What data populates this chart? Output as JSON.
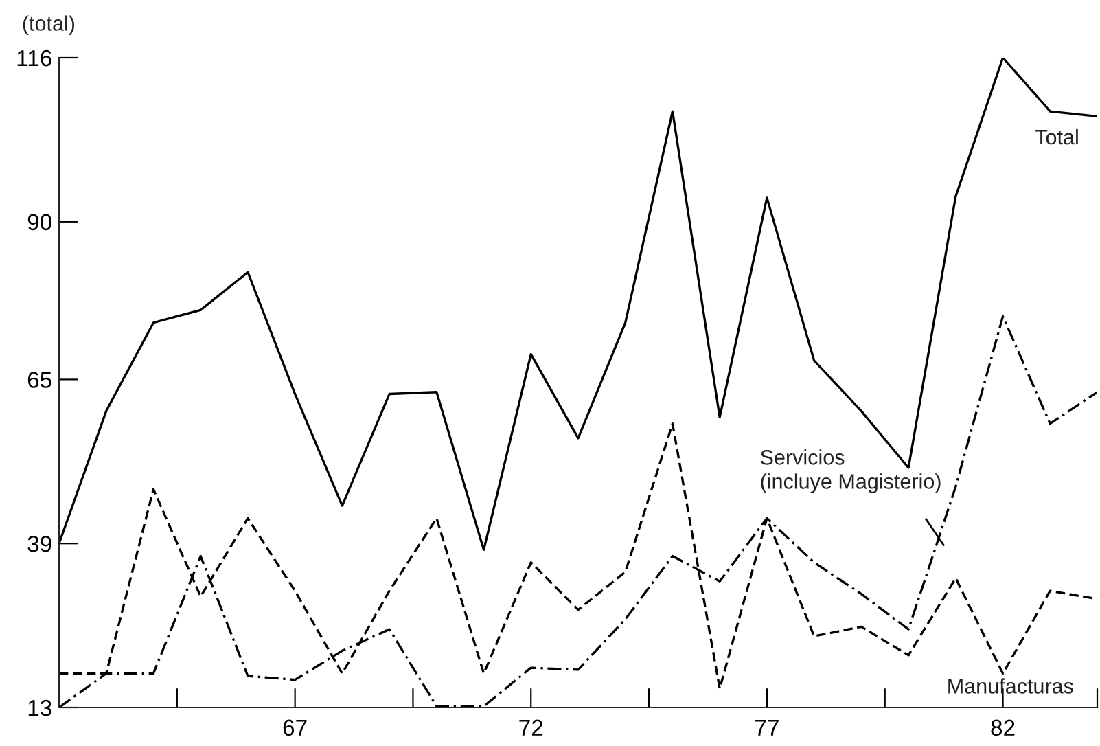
{
  "chart_data": {
    "type": "line",
    "ylabel": "(total)",
    "x": [
      62,
      63,
      64,
      65,
      66,
      67,
      68,
      69,
      70,
      71,
      72,
      73,
      74,
      75,
      76,
      77,
      78,
      79,
      80,
      81,
      82,
      83,
      84
    ],
    "series": [
      {
        "name": "Total",
        "color": "#000000",
        "line_style": "solid",
        "values": [
          39,
          60,
          74,
          76,
          82,
          62.7,
          45,
          62.7,
          63,
          38,
          69,
          55.7,
          74,
          107.5,
          59,
          93.8,
          68,
          60,
          51,
          94,
          116,
          107.5,
          106.7
        ]
      },
      {
        "name": "Servicios\n(incluye Magisterio)",
        "color": "#000000",
        "line_style": "dashdot",
        "values": [
          13,
          18.4,
          18.4,
          37,
          18,
          17.4,
          22,
          25.4,
          13.2,
          13.2,
          19.3,
          19,
          27,
          37,
          33,
          43,
          36,
          31,
          25.4,
          48,
          75,
          58,
          63
        ]
      },
      {
        "name": "Manufacturas",
        "color": "#000000",
        "line_style": "dashed",
        "values": [
          18.4,
          18.4,
          47.6,
          30.6,
          43,
          31.5,
          18.4,
          31.5,
          43,
          18.4,
          36,
          28.5,
          34.5,
          58,
          16,
          43,
          24.3,
          25.8,
          21.3,
          33.5,
          18.4,
          31.5,
          30.2
        ]
      }
    ],
    "xlim": [
      62,
      84
    ],
    "ylim": [
      13,
      116
    ],
    "xticks": [
      {
        "value": 64.5,
        "label": null
      },
      67,
      {
        "value": 69.5,
        "label": null
      },
      72,
      {
        "value": 74.5,
        "label": null
      },
      77,
      {
        "value": 79.5,
        "label": null
      },
      82,
      {
        "value": 84,
        "label": null
      }
    ],
    "yticks": [
      13,
      39,
      65,
      90,
      116
    ],
    "grid": false,
    "legend": false,
    "marker": "none"
  }
}
